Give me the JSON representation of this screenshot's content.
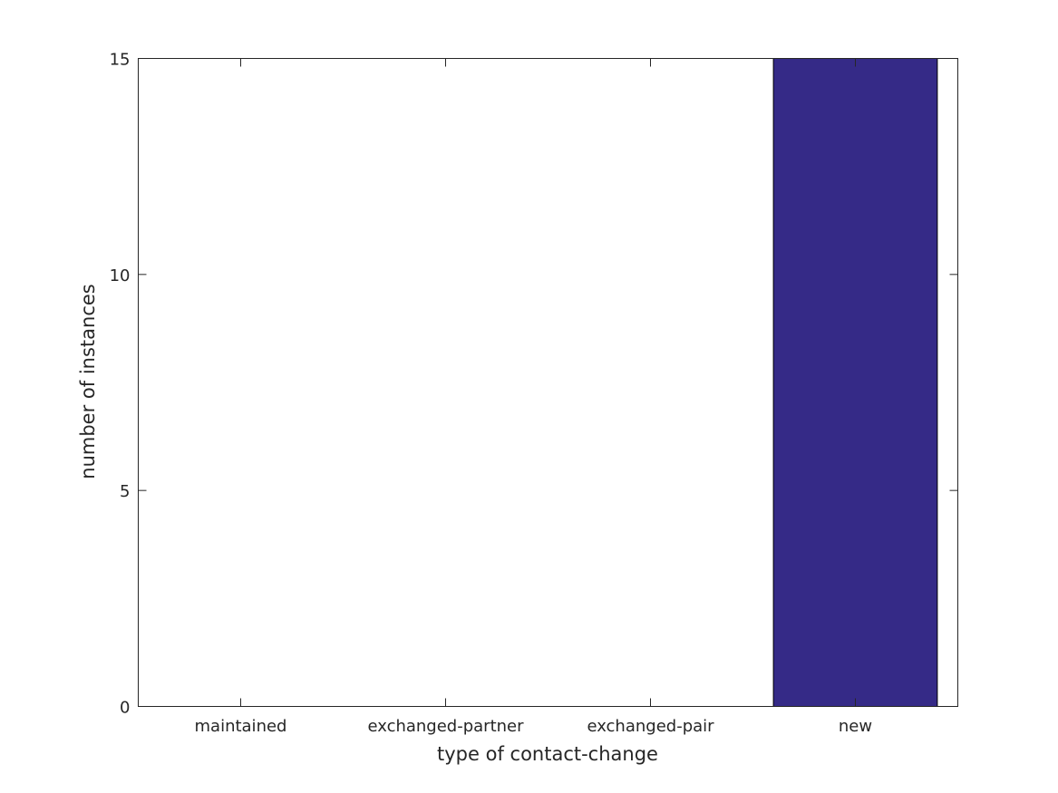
{
  "chart_data": {
    "type": "bar",
    "categories": [
      "maintained",
      "exchanged-partner",
      "exchanged-pair",
      "new"
    ],
    "values": [
      0,
      0,
      0,
      15
    ],
    "title": "",
    "xlabel": "type of contact-change",
    "ylabel": "number of instances",
    "ylim": [
      0,
      15
    ],
    "yticks": [
      0,
      5,
      10,
      15
    ],
    "grid": false,
    "bar_color": "#352a87",
    "axis_color": "#262626"
  }
}
